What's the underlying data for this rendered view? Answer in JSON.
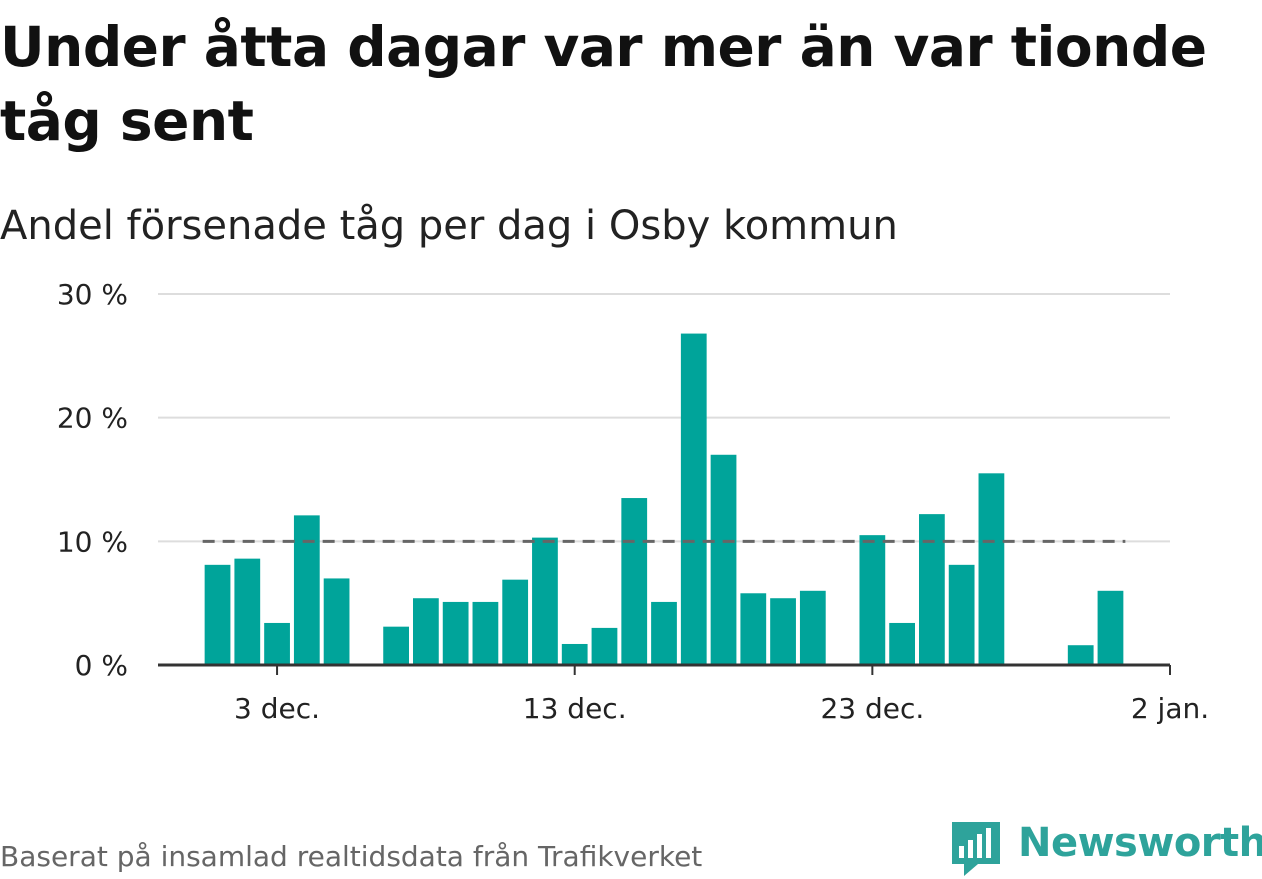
{
  "title": "Under åtta dagar var mer än var tionde tåg sent",
  "subtitle": "Andel försenade tåg per dag i Osby kommun",
  "footer": "Baserat på insamlad realtidsdata från Trafikverket",
  "logo_text": "Newsworthy",
  "colors": {
    "bar": "#00a49a",
    "reference": "#666666",
    "grid": "#dddddd",
    "axis": "#333333",
    "logo": "#2ea39b"
  },
  "chart_data": {
    "type": "bar",
    "title": "Andel försenade tåg per dag i Osby kommun",
    "xlabel": "",
    "ylabel": "",
    "ylim": [
      0,
      30
    ],
    "yticks": [
      0,
      10,
      20,
      30
    ],
    "ytick_labels": [
      "0 %",
      "10 %",
      "20 %",
      "30 %"
    ],
    "xticks": [
      "2023-12-03",
      "2023-12-13",
      "2023-12-23",
      "2024-01-02"
    ],
    "xtick_labels": [
      "3 dec.",
      "13 dec.",
      "23 dec.",
      "2 jan."
    ],
    "xlim": [
      "2023-11-29",
      "2024-01-02"
    ],
    "reference_line": {
      "value": 10,
      "from": "2023-12-01",
      "to": "2023-12-31",
      "style": "dashed"
    },
    "grid": true,
    "x": [
      "2023-12-01",
      "2023-12-02",
      "2023-12-03",
      "2023-12-04",
      "2023-12-05",
      "2023-12-06",
      "2023-12-07",
      "2023-12-08",
      "2023-12-09",
      "2023-12-10",
      "2023-12-11",
      "2023-12-12",
      "2023-12-13",
      "2023-12-14",
      "2023-12-15",
      "2023-12-16",
      "2023-12-17",
      "2023-12-18",
      "2023-12-19",
      "2023-12-20",
      "2023-12-21",
      "2023-12-22",
      "2023-12-23",
      "2023-12-24",
      "2023-12-25",
      "2023-12-26",
      "2023-12-27",
      "2023-12-28",
      "2023-12-29",
      "2023-12-30",
      "2023-12-31"
    ],
    "values": [
      8.1,
      8.6,
      3.4,
      12.1,
      7.0,
      0,
      3.1,
      5.4,
      5.1,
      5.1,
      6.9,
      10.3,
      1.7,
      3.0,
      13.5,
      5.1,
      26.8,
      17.0,
      5.8,
      5.4,
      6.0,
      0,
      10.5,
      3.4,
      12.2,
      8.1,
      15.5,
      0,
      0,
      1.6,
      6.0
    ]
  }
}
